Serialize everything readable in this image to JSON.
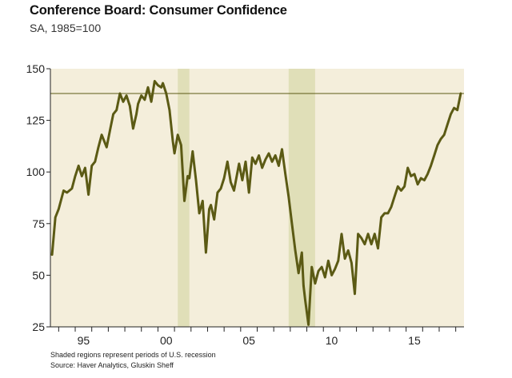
{
  "title": "Conference Board: Consumer Confidence",
  "subtitle": "SA, 1985=100",
  "notes": [
    "Shaded regions represent periods of U.S. recession",
    "Source: Haver Analytics, Gluskin Sheff"
  ],
  "colors": {
    "background": "#f4eedb",
    "line": "#5b5a14",
    "recession": "#e0dfb8",
    "axis": "#222222"
  },
  "chart_data": {
    "type": "line",
    "title": "Conference Board: Consumer Confidence",
    "subtitle": "SA, 1985=100",
    "xlabel": "",
    "ylabel": "",
    "xlim": [
      1993.5,
      2018.5
    ],
    "ylim": [
      25,
      150
    ],
    "y_ticks": [
      25,
      50,
      75,
      100,
      125,
      150
    ],
    "x_ticks": [
      {
        "value": 1995.5,
        "label": "95"
      },
      {
        "value": 2000.5,
        "label": "00"
      },
      {
        "value": 2005.5,
        "label": "05"
      },
      {
        "value": 2010.5,
        "label": "10"
      },
      {
        "value": 2015.5,
        "label": "15"
      }
    ],
    "reference_line": 138,
    "recessions": [
      [
        2001.2,
        2001.9
      ],
      [
        2007.9,
        2009.5
      ]
    ],
    "grid": false,
    "series": [
      {
        "x": [
          1993.6,
          1993.8,
          1994.0,
          1994.3,
          1994.5,
          1994.8,
          1995.0,
          1995.2,
          1995.4,
          1995.6,
          1995.8,
          1996.0,
          1996.2,
          1996.4,
          1996.6,
          1996.9,
          1997.1,
          1997.3,
          1997.5,
          1997.7,
          1997.9,
          1998.1,
          1998.3,
          1998.5,
          1998.7,
          1998.8,
          1999.0,
          1999.2,
          1999.4,
          1999.6,
          1999.8,
          2000.0,
          2000.2,
          2000.3,
          2000.5,
          2000.7,
          2000.9,
          2001.0,
          2001.2,
          2001.4,
          2001.6,
          2001.8,
          2001.9,
          2002.1,
          2002.3,
          2002.5,
          2002.7,
          2002.9,
          2003.1,
          2003.2,
          2003.4,
          2003.6,
          2003.8,
          2004.0,
          2004.2,
          2004.4,
          2004.6,
          2004.9,
          2005.1,
          2005.3,
          2005.5,
          2005.7,
          2005.9,
          2006.1,
          2006.3,
          2006.5,
          2006.7,
          2006.9,
          2007.1,
          2007.3,
          2007.5,
          2007.7,
          2007.9,
          2008.1,
          2008.3,
          2008.5,
          2008.7,
          2008.8,
          2008.9,
          2009.1,
          2009.3,
          2009.5,
          2009.7,
          2009.9,
          2010.1,
          2010.3,
          2010.5,
          2010.7,
          2010.9,
          2011.1,
          2011.3,
          2011.5,
          2011.7,
          2011.9,
          2012.1,
          2012.3,
          2012.5,
          2012.7,
          2012.9,
          2013.1,
          2013.3,
          2013.5,
          2013.7,
          2013.9,
          2014.1,
          2014.3,
          2014.5,
          2014.7,
          2014.9,
          2015.1,
          2015.3,
          2015.5,
          2015.7,
          2015.9,
          2016.1,
          2016.3,
          2016.5,
          2016.7,
          2016.9,
          2017.1,
          2017.3,
          2017.5,
          2017.7,
          2017.9,
          2018.1,
          2018.3
        ],
        "values": [
          60,
          78,
          82,
          91,
          90,
          92,
          98,
          103,
          98,
          102,
          89,
          103,
          105,
          112,
          118,
          112,
          120,
          128,
          130,
          138,
          134,
          137,
          132,
          121,
          128,
          133,
          137,
          135,
          141,
          134,
          144,
          142,
          141,
          143,
          138,
          130,
          115,
          109,
          118,
          113,
          86,
          98,
          97,
          110,
          96,
          80,
          86,
          61,
          82,
          84,
          77,
          90,
          92,
          97,
          105,
          95,
          91,
          104,
          96,
          105,
          90,
          107,
          104,
          108,
          102,
          106,
          109,
          105,
          108,
          103,
          111,
          99,
          88,
          75,
          62,
          51,
          61,
          45,
          38,
          26,
          54,
          46,
          52,
          54,
          49,
          57,
          50,
          53,
          57,
          70,
          58,
          62,
          56,
          41,
          70,
          68,
          65,
          70,
          65,
          70,
          63,
          78,
          80,
          80,
          83,
          88,
          93,
          91,
          93,
          102,
          98,
          99,
          94,
          97,
          96,
          99,
          103,
          108,
          113,
          116,
          118,
          123,
          128,
          131,
          130,
          138
        ]
      }
    ]
  }
}
